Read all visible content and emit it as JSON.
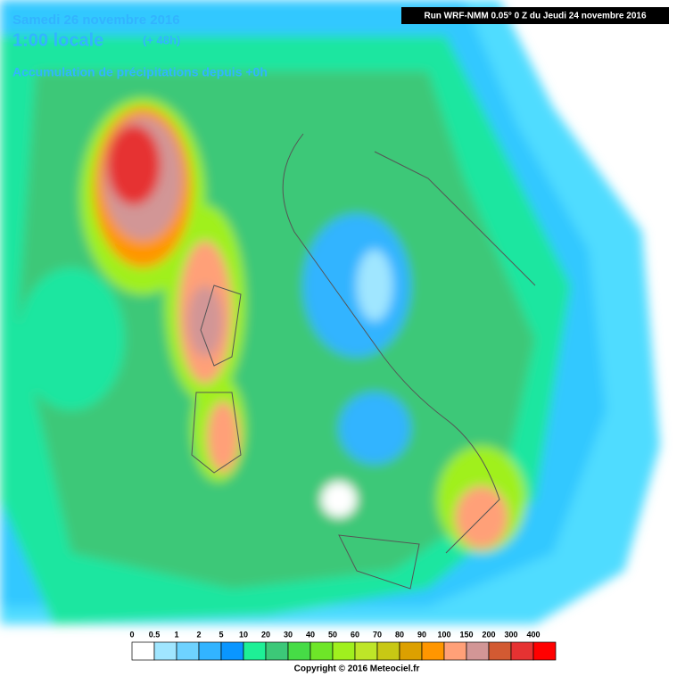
{
  "header": {
    "date": "Samedi 26 novembre 2016",
    "time": "1:00 locale",
    "lead": "(+ 48h)",
    "subtitle": "Accumulation de précipitations depuis +0h",
    "run": "Run WRF-NMM 0.05° 0 Z du Jeudi 24 novembre 2016"
  },
  "legend": [
    {
      "label": 0,
      "color": "#ffffff"
    },
    {
      "label": 0.5,
      "color": "#a0e6ff"
    },
    {
      "label": 1,
      "color": "#6ed2ff"
    },
    {
      "label": 2,
      "color": "#32b4ff"
    },
    {
      "label": 5,
      "color": "#0a96ff"
    },
    {
      "label": 10,
      "color": "#1ef096"
    },
    {
      "label": 20,
      "color": "#3cc878"
    },
    {
      "label": 30,
      "color": "#46dc46"
    },
    {
      "label": 40,
      "color": "#6ee628"
    },
    {
      "label": 50,
      "color": "#a0f01e"
    },
    {
      "label": 60,
      "color": "#bee628"
    },
    {
      "label": 70,
      "color": "#c8c814"
    },
    {
      "label": 80,
      "color": "#dca000"
    },
    {
      "label": 90,
      "color": "#ff9600"
    },
    {
      "label": 100,
      "color": "#ffa078"
    },
    {
      "label": 150,
      "color": "#d29696"
    },
    {
      "label": 200,
      "color": "#d25a32"
    },
    {
      "label": 300,
      "color": "#e63232"
    },
    {
      "label": 400,
      "color": "#ff0000"
    }
  ],
  "footer": {
    "copyright": "Copyright © 2016 Meteociel.fr"
  }
}
